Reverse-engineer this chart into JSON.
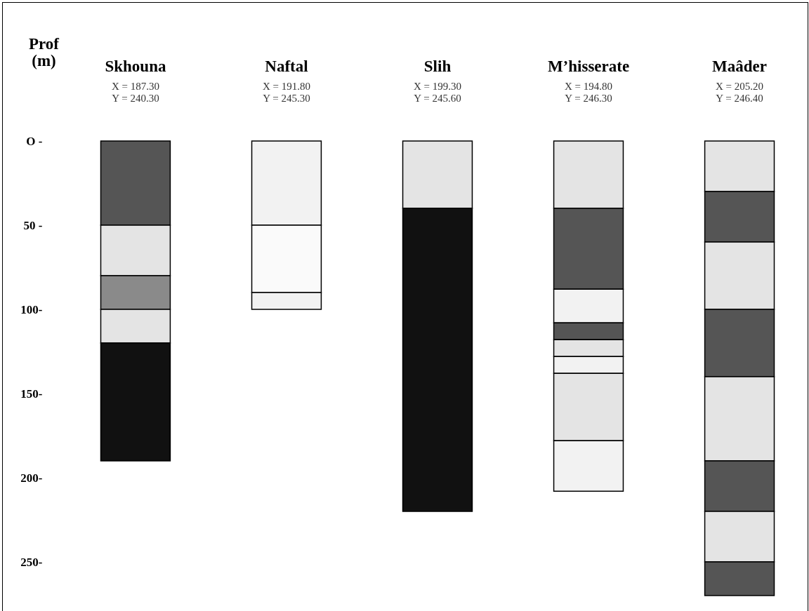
{
  "chart_data": {
    "type": "bar",
    "stacked": true,
    "ylabel": "Prof (m)",
    "categories": [
      "Skhouna",
      "Naftal",
      "Slih",
      "M’hisserate",
      "Maâder"
    ],
    "series": [
      {
        "colors": [
          "#555555",
          "#f2f2f2",
          "#e4e4e4",
          "#e4e4e4",
          "#e4e4e4"
        ],
        "values": [
          50,
          50,
          40,
          40,
          30
        ]
      },
      {
        "colors": [
          "#e4e4e4",
          "#fafafa",
          "#111111",
          "#555555",
          "#555555"
        ],
        "values": [
          30,
          40,
          180,
          48,
          30
        ]
      },
      {
        "colors": [
          "#8a8a8a",
          "#f2f2f2",
          null,
          "#f2f2f2",
          "#e4e4e4"
        ],
        "values": [
          20,
          10,
          null,
          20,
          40
        ]
      },
      {
        "colors": [
          "#e4e4e4",
          null,
          null,
          "#555555",
          "#555555"
        ],
        "values": [
          20,
          null,
          null,
          10,
          40
        ]
      },
      {
        "colors": [
          "#111111",
          null,
          null,
          "#e4e4e4",
          "#e4e4e4"
        ],
        "values": [
          70,
          null,
          null,
          10,
          50
        ]
      },
      {
        "colors": [
          null,
          null,
          null,
          "#f2f2f2",
          "#555555"
        ],
        "values": [
          null,
          null,
          null,
          10,
          30
        ]
      },
      {
        "colors": [
          null,
          null,
          null,
          "#e4e4e4",
          "#e4e4e4"
        ],
        "values": [
          null,
          null,
          null,
          40,
          30
        ]
      },
      {
        "colors": [
          null,
          null,
          null,
          "#f2f2f2",
          "#555555"
        ],
        "values": [
          null,
          null,
          null,
          30,
          20
        ]
      }
    ],
    "ylim": [
      280,
      0
    ],
    "yticks": [
      {
        "value": 0,
        "label": "O -"
      },
      {
        "value": 50,
        "label": "50 -"
      },
      {
        "value": 100,
        "label": "100-"
      },
      {
        "value": 150,
        "label": "150-"
      },
      {
        "value": 200,
        "label": "200-"
      },
      {
        "value": 250,
        "label": "250-"
      }
    ],
    "annotations": [
      "X = 187.30",
      "Y = 240.30",
      "X = 191.80",
      "Y = 245.30",
      "X = 199.30",
      "Y = 245.60",
      "X = 194.80",
      "Y = 246.30",
      "X = 205.20",
      "Y = 246.40"
    ]
  }
}
